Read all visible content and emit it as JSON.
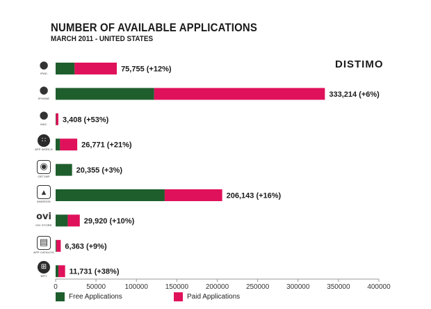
{
  "title": "NUMBER OF AVAILABLE APPLICATIONS",
  "subtitle": "MARCH 2011  - UNITED STATES",
  "brand": "DISTIMO",
  "colors": {
    "free": "#1e5e2d",
    "paid": "#e0115b",
    "axis": "#999999"
  },
  "legend": {
    "free": "Free Applications",
    "paid": "Paid Applications"
  },
  "platforms": [
    {
      "name": "iPad",
      "icon_caption": "IPAD",
      "icon": "apple-icon"
    },
    {
      "name": "iPhone",
      "icon_caption": "IPHONE",
      "icon": "apple-icon"
    },
    {
      "name": "Mac",
      "icon_caption": "MAC",
      "icon": "apple-icon"
    },
    {
      "name": "App World",
      "icon_caption": "APP WORLD",
      "icon": "blackberry-icon"
    },
    {
      "name": "GetJar",
      "icon_caption": "GETJAR",
      "icon": "getjar-icon"
    },
    {
      "name": "Android",
      "icon_caption": "ANDROID",
      "icon": "android-icon"
    },
    {
      "name": "Ovi Store",
      "icon_caption": "OVI STORE",
      "icon": "ovi-icon"
    },
    {
      "name": "App Catalog",
      "icon_caption": "APP CATALOG",
      "icon": "palm-icon"
    },
    {
      "name": "WP7",
      "icon_caption": "WP7",
      "icon": "windows-icon"
    }
  ],
  "chart_data": {
    "type": "bar",
    "orientation": "horizontal",
    "stacked": true,
    "categories": [
      "iPad",
      "iPhone",
      "Mac",
      "App World",
      "GetJar",
      "Android",
      "Ovi Store",
      "App Catalog",
      "WP7"
    ],
    "series": [
      {
        "name": "Free Applications",
        "values": [
          23500,
          122000,
          500,
          5500,
          20355,
          135000,
          15000,
          1000,
          3500
        ]
      },
      {
        "name": "Paid Applications",
        "values": [
          52255,
          211214,
          2908,
          21271,
          0,
          71143,
          14920,
          5363,
          8231
        ]
      }
    ],
    "data_labels": [
      "75,755 (+12%)",
      "333,214 (+6%)",
      "3,408 (+53%)",
      "26,771 (+21%)",
      "20,355 (+3%)",
      "206,143 (+16%)",
      "29,920 (+10%)",
      "6,363 (+9%)",
      "11,731 (+38%)"
    ],
    "xlim": [
      0,
      400000
    ],
    "xticks": [
      0,
      50000,
      100000,
      150000,
      200000,
      250000,
      300000,
      350000,
      400000
    ],
    "xtick_labels": [
      "0",
      "50000",
      "100000",
      "150000",
      "200000",
      "250000",
      "300000",
      "350000",
      "400000"
    ],
    "grid": false,
    "legend_position": "bottom"
  }
}
